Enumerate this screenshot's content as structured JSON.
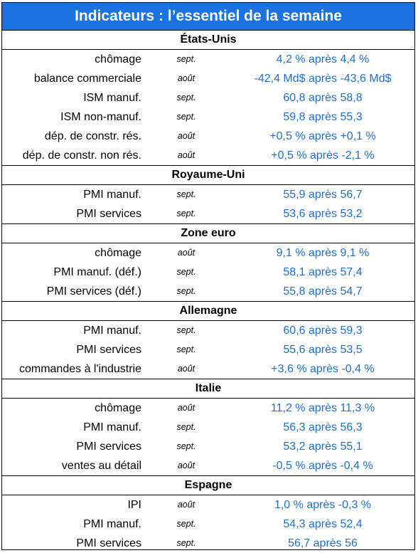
{
  "title": "Indicateurs : l’essentiel de la semaine",
  "sections": [
    {
      "name": "États-Unis",
      "rows": [
        {
          "label": "chômage",
          "period": "sept.",
          "value": "4,2 % après 4,4 %"
        },
        {
          "label": "balance commerciale",
          "period": "août",
          "value": "-42,4 Md$ après -43,6 Md$"
        },
        {
          "label": "ISM manuf.",
          "period": "sept.",
          "value": "60,8 après 58,8"
        },
        {
          "label": "ISM non-manuf.",
          "period": "sept.",
          "value": "59,8 après 55,3"
        },
        {
          "label": "dép. de constr. rés.",
          "period": "août",
          "value": "+0,5 % après +0,1 %"
        },
        {
          "label": "dép. de constr. non rés.",
          "period": "août",
          "value": "+0,5 % après -2,1 %"
        }
      ]
    },
    {
      "name": "Royaume-Uni",
      "rows": [
        {
          "label": "PMI manuf.",
          "period": "sept.",
          "value": "55,9 après 56,7"
        },
        {
          "label": "PMI services",
          "period": "sept.",
          "value": "53,6 après 53,2"
        }
      ]
    },
    {
      "name": "Zone euro",
      "rows": [
        {
          "label": "chômage",
          "period": "août",
          "value": "9,1 % après 9,1 %"
        },
        {
          "label": "PMI manuf. (déf.)",
          "period": "sept.",
          "value": "58,1 après 57,4"
        },
        {
          "label": "PMI services (déf.)",
          "period": "sept.",
          "value": "55,8 après 54,7"
        }
      ]
    },
    {
      "name": "Allemagne",
      "rows": [
        {
          "label": "PMI manuf.",
          "period": "sept.",
          "value": "60,6 après 59,3"
        },
        {
          "label": "PMI services",
          "period": "sept.",
          "value": "55,6 après 53,5"
        },
        {
          "label": "commandes à l'industrie",
          "period": "août",
          "value": "+3,6 % après -0,4 %"
        }
      ]
    },
    {
      "name": "Italie",
      "rows": [
        {
          "label": "chômage",
          "period": "août",
          "value": "11,2 % après 11,3 %"
        },
        {
          "label": "PMI manuf.",
          "period": "sept.",
          "value": "56,3 après 56,3"
        },
        {
          "label": "PMI services",
          "period": "sept.",
          "value": "53,2 après 55,1"
        },
        {
          "label": "ventes au détail",
          "period": "août",
          "value": "-0,5 % après -0,4 %"
        }
      ]
    },
    {
      "name": "Espagne",
      "rows": [
        {
          "label": "IPI",
          "period": "août",
          "value": "1,0 % après -0,3 %"
        },
        {
          "label": "PMI manuf.",
          "period": "sept.",
          "value": "54,3 après 52,4"
        },
        {
          "label": "PMI services",
          "period": "sept.",
          "value": "56,7 après 56"
        }
      ]
    }
  ],
  "colors": {
    "title_bg": "#1a73e0",
    "value_text": "#1f6fd0"
  }
}
